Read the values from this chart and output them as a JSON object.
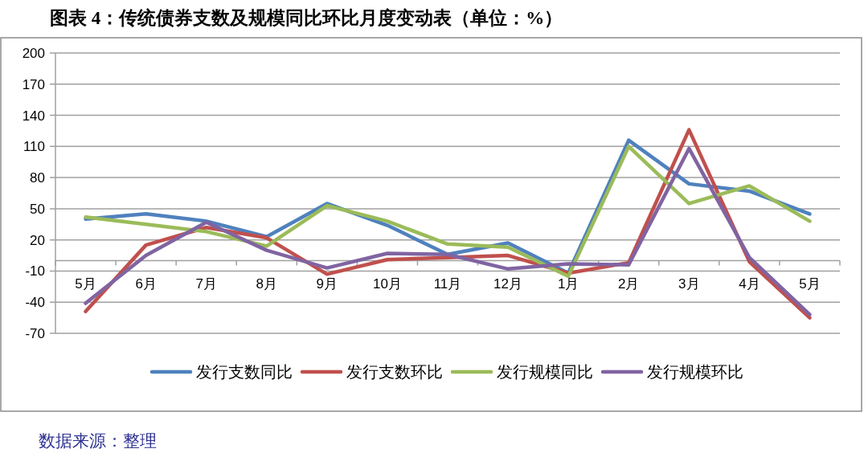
{
  "chart_data": {
    "type": "line",
    "title": "图表 4：传统债券支数及规模同比环比月度变动表（单位：%）",
    "categories": [
      "5月",
      "6月",
      "7月",
      "8月",
      "9月",
      "10月",
      "11月",
      "12月",
      "1月",
      "2月",
      "3月",
      "4月",
      "5月"
    ],
    "series": [
      {
        "name": "发行支数同比",
        "color": "#4f81bd",
        "values": [
          40,
          45,
          38,
          23,
          55,
          34,
          6,
          17,
          -12,
          116,
          74,
          67,
          45
        ]
      },
      {
        "name": "发行支数环比",
        "color": "#c0504d",
        "values": [
          -49,
          15,
          32,
          22,
          -13,
          1,
          3,
          5,
          -12,
          -2,
          126,
          -1,
          -55
        ]
      },
      {
        "name": "发行规模同比",
        "color": "#9bbb59",
        "values": [
          42,
          35,
          28,
          14,
          53,
          38,
          16,
          13,
          -15,
          110,
          55,
          72,
          38
        ]
      },
      {
        "name": "发行规模环比",
        "color": "#8064a2",
        "values": [
          -41,
          5,
          37,
          10,
          -7,
          7,
          6,
          -8,
          -3,
          -4,
          108,
          3,
          -52
        ]
      }
    ],
    "ylim": [
      -70,
      200
    ],
    "yticks": [
      -70,
      -40,
      -10,
      20,
      50,
      80,
      110,
      140,
      170,
      200
    ],
    "grid": "y",
    "legend": "bottom",
    "annotations": [
      "数据来源：整理"
    ]
  }
}
